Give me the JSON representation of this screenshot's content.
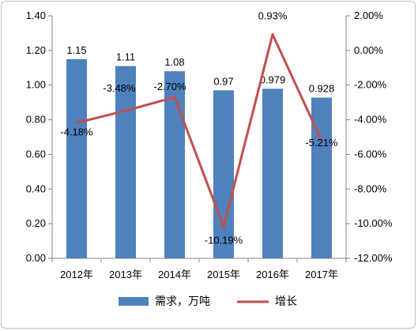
{
  "chart_data": {
    "type": "bar+line",
    "title": "",
    "categories": [
      "2012年",
      "2013年",
      "2014年",
      "2015年",
      "2016年",
      "2017年"
    ],
    "series": [
      {
        "name": "需求，万吨",
        "type": "bar",
        "axis": "left",
        "color": "#4f81bd",
        "values": [
          1.15,
          1.11,
          1.08,
          0.97,
          0.979,
          0.928
        ],
        "labels": [
          "1.15",
          "1.11",
          "1.08",
          "0.97",
          "0.979",
          "0.928"
        ]
      },
      {
        "name": "增长",
        "type": "line",
        "axis": "right",
        "color": "#c0504d",
        "values": [
          -4.18,
          -3.48,
          -2.7,
          -10.19,
          0.93,
          -5.21
        ],
        "labels": [
          "-4.18%",
          "-3.48%",
          "-2.70%",
          "-10.19%",
          "0.93%",
          "-5.21%"
        ]
      }
    ],
    "y_left": {
      "range": [
        0,
        1.4
      ],
      "ticks": [
        "0.00",
        "0.20",
        "0.40",
        "0.60",
        "0.80",
        "1.00",
        "1.20",
        "1.40"
      ]
    },
    "y_right": {
      "range": [
        -12,
        2
      ],
      "unit": "%",
      "ticks": [
        "-12.00%",
        "-10.00%",
        "-8.00%",
        "-6.00%",
        "-4.00%",
        "-2.00%",
        "0.00%",
        "2.00%"
      ]
    },
    "grid": false,
    "legend": "bottom"
  }
}
